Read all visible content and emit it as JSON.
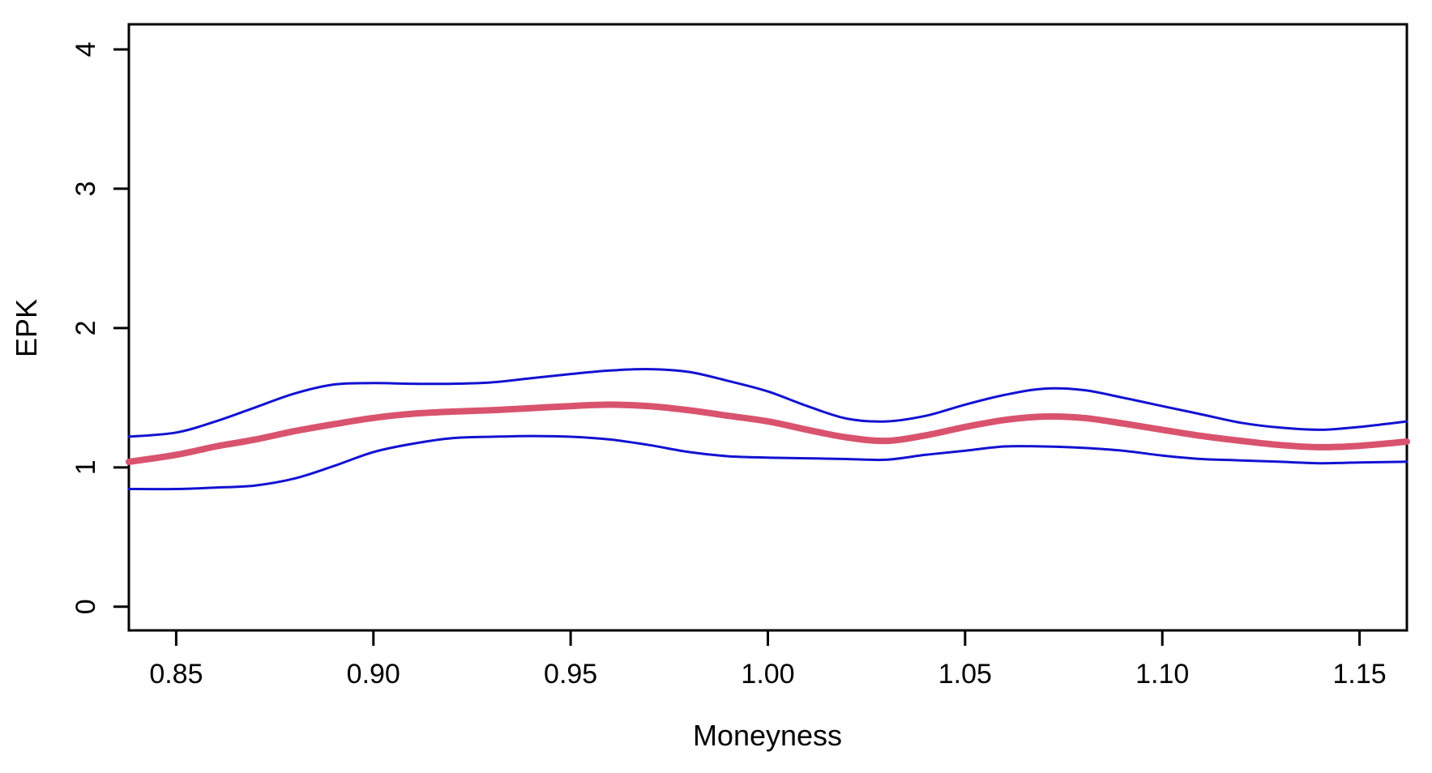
{
  "chart_data": {
    "type": "line",
    "title": "",
    "xlabel": "Moneyness",
    "ylabel": "EPK",
    "xlim": [
      0.838,
      1.162
    ],
    "ylim": [
      -0.17,
      4.18
    ],
    "x_ticks": [
      0.85,
      0.9,
      0.95,
      1.0,
      1.05,
      1.1,
      1.15
    ],
    "x_tick_labels": [
      "0.85",
      "0.90",
      "0.95",
      "1.00",
      "1.05",
      "1.10",
      "1.15"
    ],
    "y_ticks": [
      0,
      1,
      2,
      3,
      4
    ],
    "y_tick_labels": [
      "0",
      "1",
      "2",
      "3",
      "4"
    ],
    "grid": false,
    "legend_position": "none",
    "axis_color": "#000000",
    "x": [
      0.838,
      0.85,
      0.86,
      0.87,
      0.88,
      0.89,
      0.9,
      0.91,
      0.92,
      0.93,
      0.94,
      0.95,
      0.96,
      0.97,
      0.98,
      0.99,
      1.0,
      1.01,
      1.02,
      1.03,
      1.04,
      1.05,
      1.06,
      1.07,
      1.08,
      1.09,
      1.1,
      1.11,
      1.12,
      1.13,
      1.14,
      1.15,
      1.162
    ],
    "series": [
      {
        "name": "EPK estimate",
        "color": "#d9536e",
        "line_width": 8,
        "values": [
          1.04,
          1.09,
          1.15,
          1.2,
          1.26,
          1.31,
          1.355,
          1.385,
          1.4,
          1.41,
          1.425,
          1.44,
          1.45,
          1.44,
          1.41,
          1.37,
          1.33,
          1.27,
          1.215,
          1.19,
          1.23,
          1.29,
          1.34,
          1.365,
          1.355,
          1.315,
          1.27,
          1.225,
          1.19,
          1.16,
          1.145,
          1.155,
          1.185
        ]
      },
      {
        "name": "upper confidence band",
        "color": "#1212d2",
        "line_width": 3,
        "values": [
          1.22,
          1.25,
          1.33,
          1.43,
          1.53,
          1.595,
          1.605,
          1.6,
          1.6,
          1.61,
          1.64,
          1.67,
          1.695,
          1.705,
          1.685,
          1.62,
          1.545,
          1.44,
          1.35,
          1.33,
          1.37,
          1.45,
          1.52,
          1.565,
          1.555,
          1.5,
          1.44,
          1.38,
          1.32,
          1.285,
          1.27,
          1.29,
          1.33
        ]
      },
      {
        "name": "lower confidence band",
        "color": "#1212d2",
        "line_width": 3,
        "values": [
          0.845,
          0.845,
          0.855,
          0.87,
          0.92,
          1.01,
          1.11,
          1.17,
          1.21,
          1.22,
          1.225,
          1.22,
          1.2,
          1.16,
          1.11,
          1.08,
          1.07,
          1.065,
          1.06,
          1.055,
          1.09,
          1.12,
          1.15,
          1.15,
          1.14,
          1.12,
          1.085,
          1.06,
          1.05,
          1.04,
          1.03,
          1.035,
          1.04
        ]
      }
    ]
  }
}
